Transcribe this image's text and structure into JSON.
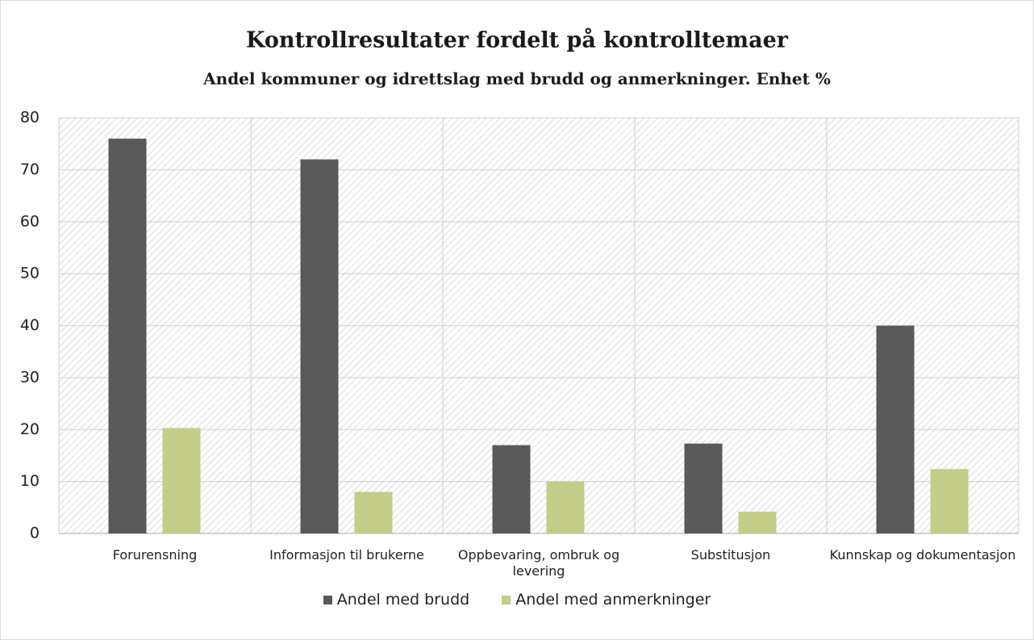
{
  "chart_data": {
    "type": "bar",
    "title": "Kontrollresultater fordelt på kontrolltemaer",
    "subtitle": "Andel kommuner og idrettslag med brudd og anmerkninger. Enhet %",
    "categories": [
      "Forurensning",
      "Informasjon til brukerne",
      "Oppbevaring, ombruk og levering",
      "Substitusjon",
      "Kunnskap og dokumentasjon"
    ],
    "series": [
      {
        "name": "Andel med brudd",
        "color": "#595959",
        "values": [
          76,
          72,
          17,
          17.3,
          40
        ]
      },
      {
        "name": "Andel med anmerkninger",
        "color": "#c3cd87",
        "values": [
          20.3,
          8,
          10,
          4.2,
          12.4
        ]
      }
    ],
    "ylim": [
      0,
      80
    ],
    "yticks": [
      0,
      10,
      20,
      30,
      40,
      50,
      60,
      70,
      80
    ],
    "grid": true,
    "legend": "bottom"
  }
}
